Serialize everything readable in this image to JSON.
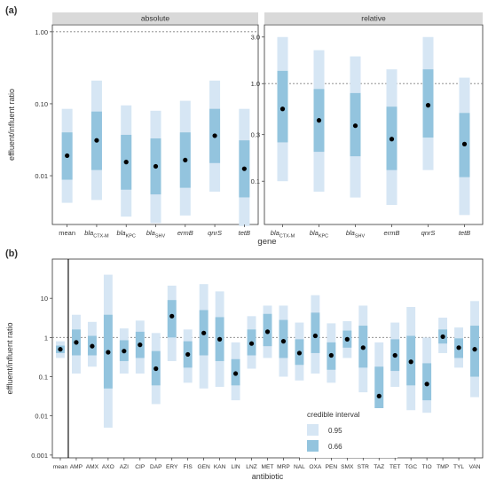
{
  "colors": {
    "ci95": "#d6e6f4",
    "ci66": "#93c4de",
    "point": "#000000",
    "refline": "#808080"
  },
  "legend": {
    "title": "credible interval",
    "items": [
      {
        "label": "0.95",
        "color": "#d6e6f4"
      },
      {
        "label": "0.66",
        "color": "#93c4de"
      }
    ]
  },
  "chart_data": [
    {
      "type": "pointrange",
      "panel_tag": "(a)",
      "facet": "absolute",
      "ylabel": "effluent/influent ratio",
      "scale": "log10",
      "ylim": [
        0.0021,
        1.25
      ],
      "yticks": [
        {
          "v": 1,
          "label": "1.00"
        },
        {
          "v": 0.1,
          "label": "0.10"
        },
        {
          "v": 0.01,
          "label": "0.01"
        }
      ],
      "refline": 1,
      "categories": [
        {
          "base": "mean"
        },
        {
          "base": "bla",
          "sub": "CTX-M"
        },
        {
          "base": "bla",
          "sub": "KPC"
        },
        {
          "base": "bla",
          "sub": "SHV"
        },
        {
          "base": "ermB"
        },
        {
          "base": "qnrS"
        },
        {
          "base": "tetB"
        }
      ],
      "points": [
        {
          "median": 0.019,
          "lo95": 0.0042,
          "hi95": 0.085,
          "lo66": 0.0088,
          "hi66": 0.04
        },
        {
          "median": 0.031,
          "lo95": 0.0046,
          "hi95": 0.21,
          "lo66": 0.012,
          "hi66": 0.078
        },
        {
          "median": 0.0155,
          "lo95": 0.0027,
          "hi95": 0.095,
          "lo66": 0.0064,
          "hi66": 0.037
        },
        {
          "median": 0.0135,
          "lo95": 0.0022,
          "hi95": 0.08,
          "lo66": 0.0055,
          "hi66": 0.033
        },
        {
          "median": 0.0165,
          "lo95": 0.0028,
          "hi95": 0.11,
          "lo66": 0.0068,
          "hi66": 0.04
        },
        {
          "median": 0.036,
          "lo95": 0.006,
          "hi95": 0.21,
          "lo66": 0.015,
          "hi66": 0.085
        },
        {
          "median": 0.0125,
          "lo95": 0.002,
          "hi95": 0.085,
          "lo66": 0.005,
          "hi66": 0.031
        }
      ]
    },
    {
      "type": "pointrange",
      "panel_tag": "",
      "facet": "relative",
      "scale": "log10",
      "ylim": [
        0.036,
        4.0
      ],
      "yticks": [
        {
          "v": 3,
          "label": "3.0"
        },
        {
          "v": 1,
          "label": "1.0"
        },
        {
          "v": 0.3,
          "label": "0.3"
        },
        {
          "v": 0.1,
          "label": "0.1"
        }
      ],
      "refline": 1,
      "categories": [
        {
          "base": "bla",
          "sub": "CTX-M"
        },
        {
          "base": "bla",
          "sub": "KPC"
        },
        {
          "base": "bla",
          "sub": "SHV"
        },
        {
          "base": "ermB"
        },
        {
          "base": "qnrS"
        },
        {
          "base": "tetB"
        }
      ],
      "points": [
        {
          "median": 0.55,
          "lo95": 0.1,
          "hi95": 3.0,
          "lo66": 0.25,
          "hi66": 1.35
        },
        {
          "median": 0.42,
          "lo95": 0.078,
          "hi95": 2.2,
          "lo66": 0.2,
          "hi66": 0.88
        },
        {
          "median": 0.37,
          "lo95": 0.068,
          "hi95": 1.9,
          "lo66": 0.18,
          "hi66": 0.8
        },
        {
          "median": 0.27,
          "lo95": 0.057,
          "hi95": 1.4,
          "lo66": 0.13,
          "hi66": 0.58
        },
        {
          "median": 0.6,
          "lo95": 0.13,
          "hi95": 3.0,
          "lo66": 0.28,
          "hi66": 1.4
        },
        {
          "median": 0.24,
          "lo95": 0.045,
          "hi95": 1.15,
          "lo66": 0.11,
          "hi66": 0.5
        }
      ]
    },
    {
      "type": "pointrange",
      "panel_tag": "(b)",
      "facet": "",
      "xlabel": "antibiotic",
      "ylabel": "effluent/influent ratio",
      "scale": "log10",
      "ylim": [
        0.00085,
        100
      ],
      "yticks": [
        {
          "v": 10,
          "label": "10"
        },
        {
          "v": 1,
          "label": "1"
        },
        {
          "v": 0.1,
          "label": "0.1"
        },
        {
          "v": 0.01,
          "label": "0.01"
        },
        {
          "v": 0.001,
          "label": "0.001"
        }
      ],
      "refline": 1,
      "categories": [
        {
          "base": "mean"
        },
        {
          "base": "AMP"
        },
        {
          "base": "AMX"
        },
        {
          "base": "AXO"
        },
        {
          "base": "AZI"
        },
        {
          "base": "CIP"
        },
        {
          "base": "DAP"
        },
        {
          "base": "ERY"
        },
        {
          "base": "FIS"
        },
        {
          "base": "GEN"
        },
        {
          "base": "KAN"
        },
        {
          "base": "LIN"
        },
        {
          "base": "LNZ"
        },
        {
          "base": "MET"
        },
        {
          "base": "MRP"
        },
        {
          "base": "NAL"
        },
        {
          "base": "OXA"
        },
        {
          "base": "PEN"
        },
        {
          "base": "SMX"
        },
        {
          "base": "STR"
        },
        {
          "base": "TAZ"
        },
        {
          "base": "TET"
        },
        {
          "base": "TGC"
        },
        {
          "base": "TIO"
        },
        {
          "base": "TMP"
        },
        {
          "base": "TYL"
        },
        {
          "base": "VAN"
        }
      ],
      "points": [
        {
          "median": 0.5,
          "lo95": 0.3,
          "hi95": 0.8,
          "lo66": 0.4,
          "hi66": 0.62
        },
        {
          "median": 0.75,
          "lo95": 0.12,
          "hi95": 3.8,
          "lo66": 0.35,
          "hi66": 1.6
        },
        {
          "median": 0.6,
          "lo95": 0.18,
          "hi95": 2.5,
          "lo66": 0.35,
          "hi66": 1.1
        },
        {
          "median": 0.42,
          "lo95": 0.005,
          "hi95": 40,
          "lo66": 0.05,
          "hi66": 3.8
        },
        {
          "median": 0.45,
          "lo95": 0.12,
          "hi95": 1.7,
          "lo66": 0.25,
          "hi66": 0.85
        },
        {
          "median": 0.65,
          "lo95": 0.12,
          "hi95": 2.7,
          "lo66": 0.3,
          "hi66": 1.4
        },
        {
          "median": 0.16,
          "lo95": 0.02,
          "hi95": 1.3,
          "lo66": 0.06,
          "hi66": 0.45
        },
        {
          "median": 3.5,
          "lo95": 0.25,
          "hi95": 21,
          "lo66": 1.0,
          "hi66": 9
        },
        {
          "median": 0.37,
          "lo95": 0.07,
          "hi95": 1.6,
          "lo66": 0.17,
          "hi66": 0.8
        },
        {
          "median": 1.3,
          "lo95": 0.05,
          "hi95": 23,
          "lo66": 0.35,
          "hi66": 5
        },
        {
          "median": 0.9,
          "lo95": 0.055,
          "hi95": 15,
          "lo66": 0.25,
          "hi66": 3.3
        },
        {
          "median": 0.12,
          "lo95": 0.025,
          "hi95": 0.75,
          "lo66": 0.06,
          "hi66": 0.28
        },
        {
          "median": 0.7,
          "lo95": 0.16,
          "hi95": 3.5,
          "lo66": 0.35,
          "hi66": 1.6
        },
        {
          "median": 1.4,
          "lo95": 0.3,
          "hi95": 6.5,
          "lo66": 0.6,
          "hi66": 4
        },
        {
          "median": 0.8,
          "lo95": 0.1,
          "hi95": 6.5,
          "lo66": 0.3,
          "hi66": 2.8
        },
        {
          "median": 0.4,
          "lo95": 0.08,
          "hi95": 2.4,
          "lo66": 0.2,
          "hi66": 0.9
        },
        {
          "median": 1.1,
          "lo95": 0.12,
          "hi95": 12,
          "lo66": 0.4,
          "hi66": 4.3
        },
        {
          "median": 0.35,
          "lo95": 0.07,
          "hi95": 2.3,
          "lo66": 0.15,
          "hi66": 0.75
        },
        {
          "median": 0.9,
          "lo95": 0.3,
          "hi95": 2.6,
          "lo66": 0.55,
          "hi66": 1.5
        },
        {
          "median": 0.55,
          "lo95": 0.04,
          "hi95": 6.5,
          "lo66": 0.17,
          "hi66": 2.0
        },
        {
          "median": 0.032,
          "lo95": 0.0016,
          "hi95": 0.75,
          "lo66": 0.007,
          "hi66": 0.18
        },
        {
          "median": 0.35,
          "lo95": 0.055,
          "hi95": 2.4,
          "lo66": 0.14,
          "hi66": 0.9
        },
        {
          "median": 0.24,
          "lo95": 0.014,
          "hi95": 6.0,
          "lo66": 0.06,
          "hi66": 1.1
        },
        {
          "median": 0.065,
          "lo95": 0.012,
          "hi95": 1.0,
          "lo66": 0.025,
          "hi66": 0.22
        },
        {
          "median": 1.05,
          "lo95": 0.4,
          "hi95": 3.2,
          "lo66": 0.7,
          "hi66": 1.6
        },
        {
          "median": 0.55,
          "lo95": 0.17,
          "hi95": 1.8,
          "lo66": 0.3,
          "hi66": 0.95
        },
        {
          "median": 0.5,
          "lo95": 0.03,
          "hi95": 8.5,
          "lo66": 0.1,
          "hi66": 2.0
        }
      ]
    }
  ],
  "shared_labels": {
    "xlabel_top": "gene"
  }
}
